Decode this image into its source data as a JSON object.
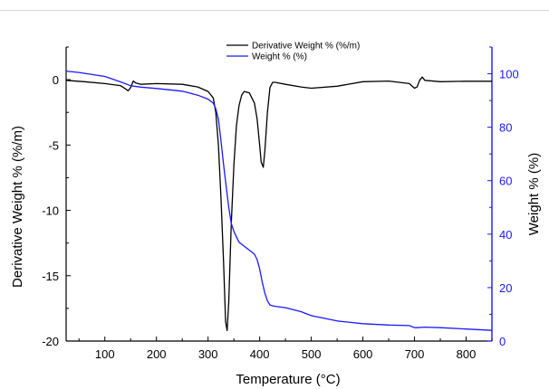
{
  "chart_data": {
    "type": "line",
    "xlabel": "Temperature (°C)",
    "ylabel_left": "Derivative Weight % (%/m)",
    "ylabel_right": "Weight % (%)",
    "xlim": [
      25,
      850
    ],
    "ylim_left": [
      -20,
      2.5
    ],
    "ylim_right": [
      0,
      110
    ],
    "x_ticks": [
      100,
      200,
      300,
      400,
      500,
      600,
      700,
      800
    ],
    "y_left_ticks": [
      0,
      -5,
      -10,
      -15,
      -20
    ],
    "y_right_ticks": [
      0,
      20,
      40,
      60,
      80,
      100
    ],
    "legend_position": "top-center",
    "grid": false,
    "series": [
      {
        "name": "Derivative Weight % (%/m)",
        "axis": "left",
        "color": "#000000",
        "x": [
          25,
          60,
          100,
          130,
          140,
          145,
          150,
          155,
          160,
          170,
          200,
          250,
          280,
          300,
          310,
          315,
          320,
          325,
          330,
          334,
          337,
          340,
          345,
          350,
          355,
          360,
          365,
          370,
          380,
          390,
          395,
          400,
          403,
          407,
          410,
          415,
          420,
          425,
          430,
          450,
          480,
          500,
          550,
          600,
          650,
          690,
          700,
          705,
          710,
          715,
          720,
          750,
          800,
          850
        ],
        "y": [
          -0.05,
          -0.15,
          -0.3,
          -0.45,
          -0.7,
          -0.85,
          -0.6,
          -0.1,
          -0.25,
          -0.35,
          -0.3,
          -0.35,
          -0.55,
          -0.9,
          -1.4,
          -2.5,
          -5.0,
          -9.0,
          -14.0,
          -18.5,
          -19.2,
          -17.0,
          -11.0,
          -6.5,
          -3.5,
          -2.0,
          -1.2,
          -0.9,
          -1.0,
          -1.8,
          -3.0,
          -5.0,
          -6.3,
          -6.7,
          -5.5,
          -2.5,
          -0.6,
          -0.2,
          -0.2,
          -0.35,
          -0.55,
          -0.65,
          -0.5,
          -0.15,
          -0.1,
          -0.3,
          -0.65,
          -0.55,
          -0.05,
          0.2,
          -0.05,
          -0.15,
          -0.12,
          -0.12
        ]
      },
      {
        "name": "Weight % (%)",
        "axis": "right",
        "color": "#1a1aff",
        "x": [
          25,
          50,
          100,
          130,
          150,
          170,
          200,
          250,
          280,
          300,
          310,
          315,
          320,
          325,
          330,
          335,
          340,
          345,
          350,
          355,
          360,
          370,
          380,
          390,
          395,
          400,
          405,
          410,
          415,
          420,
          425,
          430,
          450,
          480,
          500,
          550,
          600,
          650,
          690,
          700,
          705,
          720,
          750,
          800,
          850
        ],
        "y": [
          101,
          100.5,
          99,
          97,
          95.5,
          95,
          94.5,
          93.5,
          92,
          90.5,
          89,
          87,
          83,
          75,
          66,
          58,
          50,
          44,
          41,
          39,
          37,
          35.5,
          34,
          32.5,
          30.5,
          27,
          22,
          18,
          15,
          13.5,
          13.2,
          13,
          12.5,
          11,
          9.5,
          7.5,
          6.5,
          6,
          5.8,
          5,
          5,
          5.2,
          5,
          4.5,
          4
        ]
      }
    ]
  }
}
